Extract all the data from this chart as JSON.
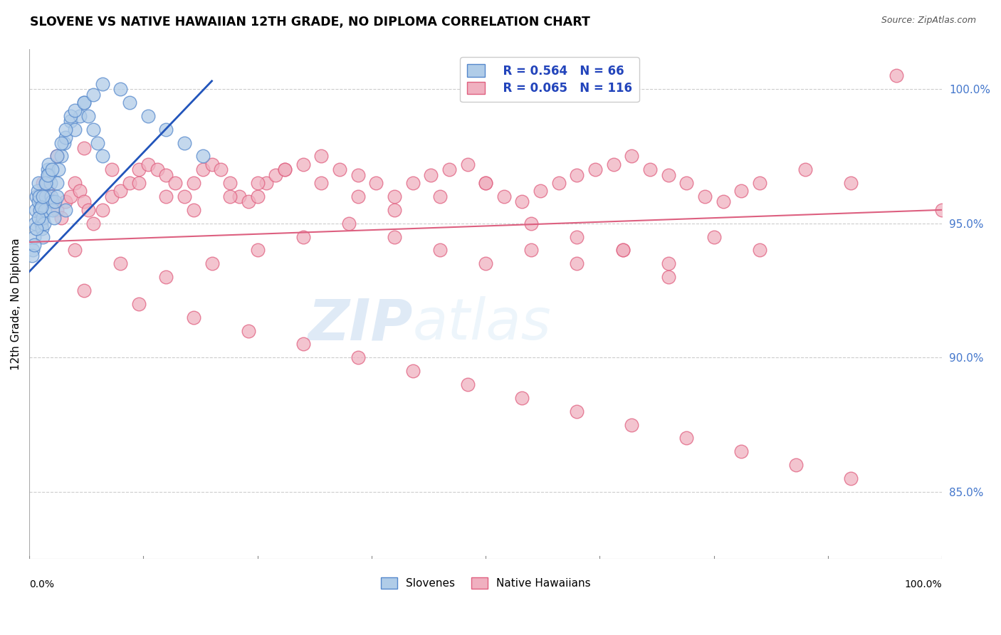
{
  "title": "SLOVENE VS NATIVE HAWAIIAN 12TH GRADE, NO DIPLOMA CORRELATION CHART",
  "source": "Source: ZipAtlas.com",
  "ylabel": "12th Grade, No Diploma",
  "right_yticks": [
    100.0,
    95.0,
    90.0,
    85.0
  ],
  "slovene_color": "#b0cce8",
  "slovene_edge_color": "#5588cc",
  "hawaiian_color": "#f0b0c0",
  "hawaiian_edge_color": "#e06080",
  "blue_line_color": "#2255bb",
  "pink_line_color": "#dd6080",
  "background_color": "#ffffff",
  "xmin": 0.0,
  "xmax": 100.0,
  "ymin": 82.5,
  "ymax": 101.5,
  "blue_line_x0": 0.0,
  "blue_line_y0": 93.2,
  "blue_line_x1": 20.0,
  "blue_line_y1": 100.3,
  "pink_line_x0": 0.0,
  "pink_line_y0": 94.3,
  "pink_line_x1": 100.0,
  "pink_line_y1": 95.5,
  "slovene_R": 0.564,
  "slovene_N": 66,
  "hawaiian_R": 0.065,
  "hawaiian_N": 116,
  "slovene_x": [
    0.4,
    0.5,
    0.6,
    0.7,
    0.8,
    0.9,
    1.0,
    1.0,
    1.1,
    1.2,
    1.3,
    1.4,
    1.5,
    1.5,
    1.6,
    1.7,
    1.8,
    1.9,
    2.0,
    2.0,
    2.1,
    2.2,
    2.3,
    2.4,
    2.5,
    2.6,
    2.7,
    2.8,
    3.0,
    3.0,
    3.2,
    3.5,
    3.8,
    4.0,
    4.5,
    5.0,
    5.5,
    6.0,
    6.5,
    7.0,
    7.5,
    8.0,
    0.3,
    0.5,
    0.8,
    1.0,
    1.3,
    1.5,
    1.8,
    2.0,
    2.5,
    3.0,
    3.5,
    4.0,
    4.5,
    5.0,
    6.0,
    7.0,
    8.0,
    10.0,
    11.0,
    13.0,
    15.0,
    17.0,
    19.0,
    4.0
  ],
  "slovene_y": [
    94.0,
    94.5,
    95.0,
    95.5,
    96.0,
    96.2,
    96.5,
    95.8,
    96.0,
    95.5,
    95.0,
    94.8,
    94.5,
    95.2,
    95.0,
    95.5,
    96.0,
    96.5,
    97.0,
    96.8,
    97.2,
    96.8,
    96.5,
    96.0,
    95.8,
    95.5,
    95.2,
    95.8,
    96.0,
    96.5,
    97.0,
    97.5,
    98.0,
    98.2,
    98.8,
    98.5,
    99.0,
    99.5,
    99.0,
    98.5,
    98.0,
    97.5,
    93.8,
    94.2,
    94.8,
    95.2,
    95.6,
    96.0,
    96.5,
    96.8,
    97.0,
    97.5,
    98.0,
    98.5,
    99.0,
    99.2,
    99.5,
    99.8,
    100.2,
    100.0,
    99.5,
    99.0,
    98.5,
    98.0,
    97.5,
    95.5
  ],
  "hawaiian_x": [
    1.5,
    2.0,
    2.5,
    3.0,
    3.5,
    4.0,
    4.5,
    5.0,
    5.5,
    6.0,
    6.5,
    7.0,
    8.0,
    9.0,
    10.0,
    11.0,
    12.0,
    13.0,
    14.0,
    15.0,
    16.0,
    17.0,
    18.0,
    19.0,
    20.0,
    21.0,
    22.0,
    23.0,
    24.0,
    25.0,
    26.0,
    27.0,
    28.0,
    30.0,
    32.0,
    34.0,
    36.0,
    38.0,
    40.0,
    42.0,
    44.0,
    46.0,
    48.0,
    50.0,
    52.0,
    54.0,
    56.0,
    58.0,
    60.0,
    62.0,
    64.0,
    66.0,
    68.0,
    70.0,
    72.0,
    74.0,
    76.0,
    78.0,
    80.0,
    85.0,
    90.0,
    95.0,
    3.0,
    6.0,
    9.0,
    12.0,
    15.0,
    18.0,
    22.0,
    25.0,
    28.0,
    32.0,
    36.0,
    40.0,
    45.0,
    50.0,
    55.0,
    60.0,
    65.0,
    70.0,
    5.0,
    10.0,
    15.0,
    20.0,
    25.0,
    30.0,
    35.0,
    40.0,
    45.0,
    50.0,
    55.0,
    60.0,
    65.0,
    70.0,
    75.0,
    80.0,
    6.0,
    12.0,
    18.0,
    24.0,
    30.0,
    36.0,
    42.0,
    48.0,
    54.0,
    60.0,
    66.0,
    72.0,
    78.0,
    84.0,
    90.0,
    100.0
  ],
  "hawaiian_y": [
    96.5,
    96.2,
    95.8,
    95.5,
    95.2,
    95.8,
    96.0,
    96.5,
    96.2,
    95.8,
    95.5,
    95.0,
    95.5,
    96.0,
    96.2,
    96.5,
    97.0,
    97.2,
    97.0,
    96.8,
    96.5,
    96.0,
    96.5,
    97.0,
    97.2,
    97.0,
    96.5,
    96.0,
    95.8,
    96.0,
    96.5,
    96.8,
    97.0,
    97.2,
    97.5,
    97.0,
    96.8,
    96.5,
    96.0,
    96.5,
    96.8,
    97.0,
    97.2,
    96.5,
    96.0,
    95.8,
    96.2,
    96.5,
    96.8,
    97.0,
    97.2,
    97.5,
    97.0,
    96.8,
    96.5,
    96.0,
    95.8,
    96.2,
    96.5,
    97.0,
    96.5,
    100.5,
    97.5,
    97.8,
    97.0,
    96.5,
    96.0,
    95.5,
    96.0,
    96.5,
    97.0,
    96.5,
    96.0,
    95.5,
    96.0,
    96.5,
    95.0,
    94.5,
    94.0,
    93.5,
    94.0,
    93.5,
    93.0,
    93.5,
    94.0,
    94.5,
    95.0,
    94.5,
    94.0,
    93.5,
    94.0,
    93.5,
    94.0,
    93.0,
    94.5,
    94.0,
    92.5,
    92.0,
    91.5,
    91.0,
    90.5,
    90.0,
    89.5,
    89.0,
    88.5,
    88.0,
    87.5,
    87.0,
    86.5,
    86.0,
    85.5,
    95.5
  ]
}
